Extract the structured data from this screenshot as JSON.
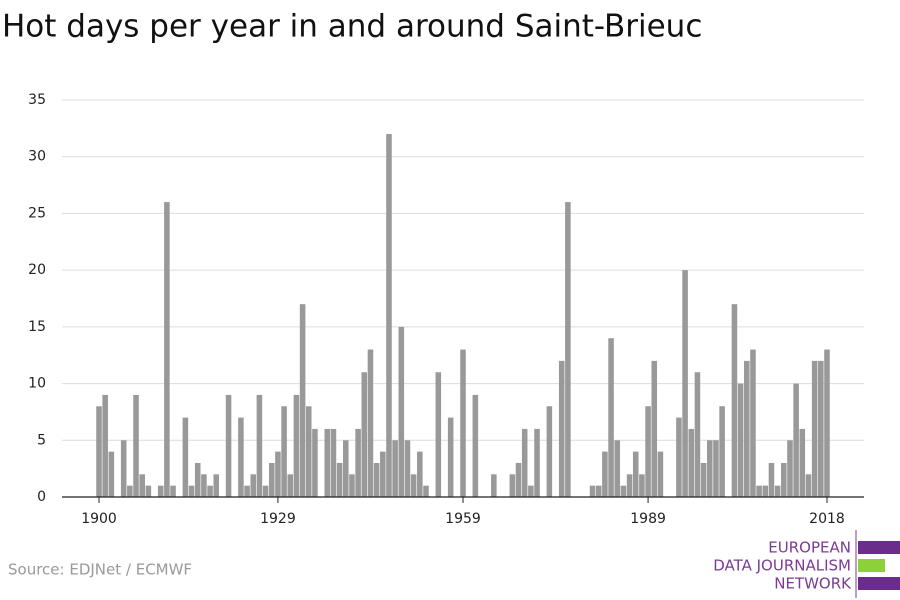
{
  "chart_data": {
    "type": "bar",
    "title": "Hot days per year in and around Saint-Brieuc",
    "source": "Source: EDJNet / ECMWF",
    "logo": [
      "EUROPEAN",
      "DATA JOURNALISM",
      "NETWORK"
    ],
    "color": "#999999",
    "x": [
      1900,
      1901,
      1902,
      1903,
      1904,
      1905,
      1906,
      1907,
      1908,
      1909,
      1910,
      1911,
      1912,
      1913,
      1914,
      1915,
      1916,
      1917,
      1918,
      1919,
      1920,
      1921,
      1922,
      1923,
      1924,
      1925,
      1926,
      1927,
      1928,
      1929,
      1930,
      1931,
      1932,
      1933,
      1934,
      1935,
      1936,
      1937,
      1938,
      1939,
      1940,
      1941,
      1942,
      1943,
      1944,
      1945,
      1946,
      1947,
      1948,
      1949,
      1950,
      1951,
      1952,
      1953,
      1954,
      1955,
      1956,
      1957,
      1958,
      1959,
      1960,
      1961,
      1962,
      1963,
      1964,
      1965,
      1966,
      1967,
      1968,
      1969,
      1970,
      1971,
      1972,
      1973,
      1974,
      1975,
      1976,
      1977,
      1978,
      1979,
      1980,
      1981,
      1982,
      1983,
      1984,
      1985,
      1986,
      1987,
      1988,
      1989,
      1990,
      1991,
      1992,
      1993,
      1994,
      1995,
      1996,
      1997,
      1998,
      1999,
      2000,
      2001,
      2002,
      2003,
      2004,
      2005,
      2006,
      2007,
      2008,
      2009,
      2010,
      2011,
      2012,
      2013,
      2014,
      2015,
      2016,
      2017,
      2018
    ],
    "values": [
      8,
      9,
      4,
      0,
      5,
      1,
      9,
      2,
      1,
      0,
      1,
      26,
      1,
      0,
      7,
      1,
      3,
      2,
      1,
      2,
      0,
      9,
      0,
      7,
      1,
      2,
      9,
      1,
      3,
      4,
      8,
      2,
      9,
      17,
      8,
      6,
      0,
      6,
      6,
      3,
      5,
      2,
      6,
      11,
      13,
      3,
      4,
      32,
      5,
      15,
      5,
      2,
      4,
      1,
      0,
      11,
      0,
      7,
      0,
      13,
      0,
      9,
      0,
      0,
      2,
      0,
      0,
      2,
      3,
      6,
      1,
      6,
      0,
      8,
      0,
      12,
      26,
      0,
      0,
      0,
      1,
      1,
      4,
      14,
      5,
      1,
      2,
      4,
      2,
      8,
      12,
      4,
      0,
      0,
      7,
      20,
      6,
      11,
      3,
      5,
      5,
      8,
      0,
      17,
      10,
      12,
      13,
      1,
      1,
      3,
      1,
      3,
      5,
      10,
      6,
      2,
      12,
      12,
      13
    ],
    "xlim": [
      1894,
      2024
    ],
    "xticks": [
      1900,
      1929,
      1959,
      1989,
      2018
    ],
    "ylim": [
      0,
      35
    ],
    "yticks": [
      0,
      5,
      10,
      15,
      20,
      25,
      30,
      35
    ],
    "grid": true
  }
}
